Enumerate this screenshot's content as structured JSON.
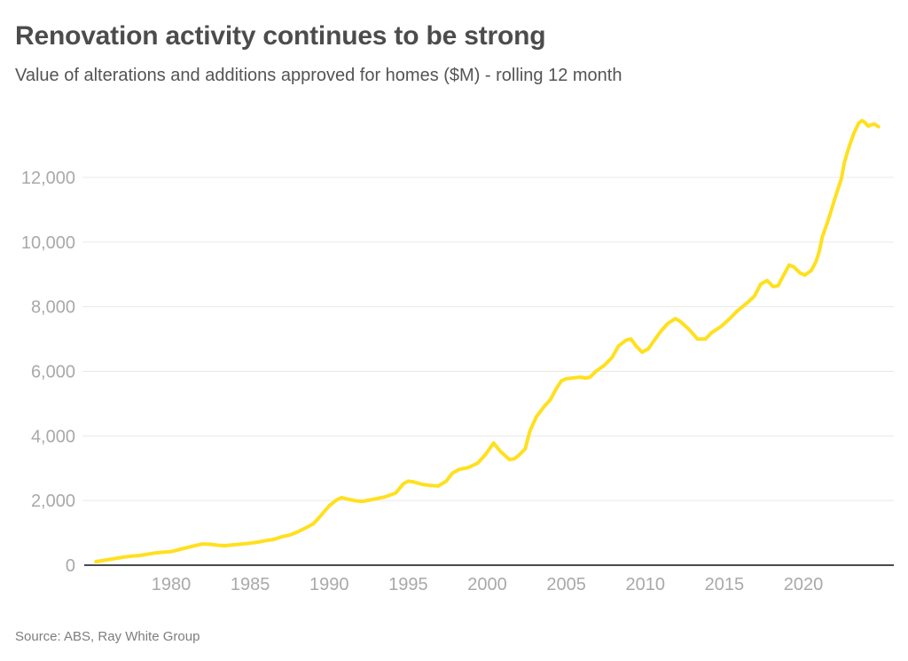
{
  "header": {
    "title": "Renovation activity continues to be strong",
    "subtitle": "Value of alterations and additions approved for homes ($M) - rolling 12 month"
  },
  "footer": {
    "source": "Source: ABS, Ray White Group"
  },
  "colors": {
    "line": "#FFE01E",
    "grid": "#e9e9e9",
    "axis": "#4a4a4a",
    "tick_label": "#a9a9a9",
    "title": "#4c4c4c",
    "subtitle": "#545454",
    "source": "#7e7e7e",
    "background": "#ffffff"
  },
  "chart_data": {
    "type": "line",
    "title": "Renovation activity continues to be strong",
    "subtitle": "Value of alterations and additions approved for homes ($M) - rolling 12 month",
    "xlabel": "",
    "ylabel": "",
    "grid": "horizontal",
    "legend": "none",
    "xlim": [
      1974.5,
      2025.7
    ],
    "ylim": [
      0,
      14000
    ],
    "x_ticks": [
      1980,
      1985,
      1990,
      1995,
      2000,
      2005,
      2010,
      2015,
      2020
    ],
    "y_ticks": [
      0,
      2000,
      4000,
      6000,
      8000,
      10000,
      12000
    ],
    "y_tick_labels": [
      "0",
      "2,000",
      "4,000",
      "6,000",
      "8,000",
      "10,000",
      "12,000"
    ],
    "series": [
      {
        "name": "Value of alterations and additions approved for homes ($M) - rolling 12 month",
        "color": "#FFE01E",
        "points": [
          [
            1975.25,
            110
          ],
          [
            1976,
            170
          ],
          [
            1976.5,
            210
          ],
          [
            1977,
            250
          ],
          [
            1977.5,
            280
          ],
          [
            1978,
            300
          ],
          [
            1978.5,
            340
          ],
          [
            1979,
            380
          ],
          [
            1979.5,
            400
          ],
          [
            1980,
            420
          ],
          [
            1980.5,
            480
          ],
          [
            1981,
            545
          ],
          [
            1981.5,
            600
          ],
          [
            1982,
            655
          ],
          [
            1982.5,
            645
          ],
          [
            1983,
            615
          ],
          [
            1983.4,
            605
          ],
          [
            1983.9,
            630
          ],
          [
            1984.5,
            655
          ],
          [
            1985,
            680
          ],
          [
            1985.5,
            715
          ],
          [
            1986,
            760
          ],
          [
            1986.5,
            800
          ],
          [
            1987,
            880
          ],
          [
            1987.5,
            930
          ],
          [
            1988,
            1030
          ],
          [
            1988.5,
            1150
          ],
          [
            1989,
            1280
          ],
          [
            1989.5,
            1550
          ],
          [
            1990,
            1840
          ],
          [
            1990.5,
            2030
          ],
          [
            1990.8,
            2090
          ],
          [
            1991.2,
            2040
          ],
          [
            1991.7,
            1990
          ],
          [
            1992.1,
            1975
          ],
          [
            1992.7,
            2030
          ],
          [
            1993.5,
            2110
          ],
          [
            1994.2,
            2230
          ],
          [
            1994.7,
            2520
          ],
          [
            1995,
            2600
          ],
          [
            1995.4,
            2570
          ],
          [
            1995.9,
            2500
          ],
          [
            1996.4,
            2470
          ],
          [
            1996.9,
            2450
          ],
          [
            1997.4,
            2600
          ],
          [
            1997.8,
            2850
          ],
          [
            1998.2,
            2960
          ],
          [
            1998.8,
            3020
          ],
          [
            1999.4,
            3160
          ],
          [
            1999.9,
            3430
          ],
          [
            2000.4,
            3780
          ],
          [
            2000.8,
            3540
          ],
          [
            2001,
            3450
          ],
          [
            2001.4,
            3270
          ],
          [
            2001.7,
            3290
          ],
          [
            2002,
            3400
          ],
          [
            2002.4,
            3600
          ],
          [
            2002.7,
            4150
          ],
          [
            2003.1,
            4590
          ],
          [
            2003.6,
            4910
          ],
          [
            2004,
            5130
          ],
          [
            2004.4,
            5490
          ],
          [
            2004.7,
            5710
          ],
          [
            2005,
            5770
          ],
          [
            2005.5,
            5800
          ],
          [
            2005.9,
            5820
          ],
          [
            2006.2,
            5790
          ],
          [
            2006.5,
            5820
          ],
          [
            2006.9,
            6010
          ],
          [
            2007.4,
            6180
          ],
          [
            2007.9,
            6430
          ],
          [
            2008.3,
            6780
          ],
          [
            2008.8,
            6970
          ],
          [
            2009.1,
            7000
          ],
          [
            2009.4,
            6790
          ],
          [
            2009.8,
            6590
          ],
          [
            2010.2,
            6700
          ],
          [
            2010.6,
            6980
          ],
          [
            2011,
            7250
          ],
          [
            2011.4,
            7470
          ],
          [
            2011.9,
            7630
          ],
          [
            2012.2,
            7550
          ],
          [
            2012.8,
            7280
          ],
          [
            2013.3,
            7000
          ],
          [
            2013.8,
            7000
          ],
          [
            2014.2,
            7200
          ],
          [
            2014.8,
            7390
          ],
          [
            2015.3,
            7610
          ],
          [
            2015.8,
            7860
          ],
          [
            2016.4,
            8100
          ],
          [
            2016.9,
            8320
          ],
          [
            2017.3,
            8700
          ],
          [
            2017.7,
            8810
          ],
          [
            2018.1,
            8620
          ],
          [
            2018.4,
            8650
          ],
          [
            2018.7,
            8930
          ],
          [
            2019.1,
            9290
          ],
          [
            2019.4,
            9230
          ],
          [
            2019.8,
            9040
          ],
          [
            2020.1,
            8980
          ],
          [
            2020.5,
            9120
          ],
          [
            2020.8,
            9400
          ],
          [
            2021,
            9700
          ],
          [
            2021.2,
            10160
          ],
          [
            2021.5,
            10570
          ],
          [
            2021.8,
            11040
          ],
          [
            2022.1,
            11510
          ],
          [
            2022.4,
            11950
          ],
          [
            2022.6,
            12470
          ],
          [
            2022.9,
            12960
          ],
          [
            2023.2,
            13370
          ],
          [
            2023.5,
            13680
          ],
          [
            2023.7,
            13760
          ],
          [
            2023.9,
            13700
          ],
          [
            2024.1,
            13590
          ],
          [
            2024.3,
            13630
          ],
          [
            2024.5,
            13650
          ],
          [
            2024.75,
            13570
          ]
        ]
      }
    ]
  }
}
